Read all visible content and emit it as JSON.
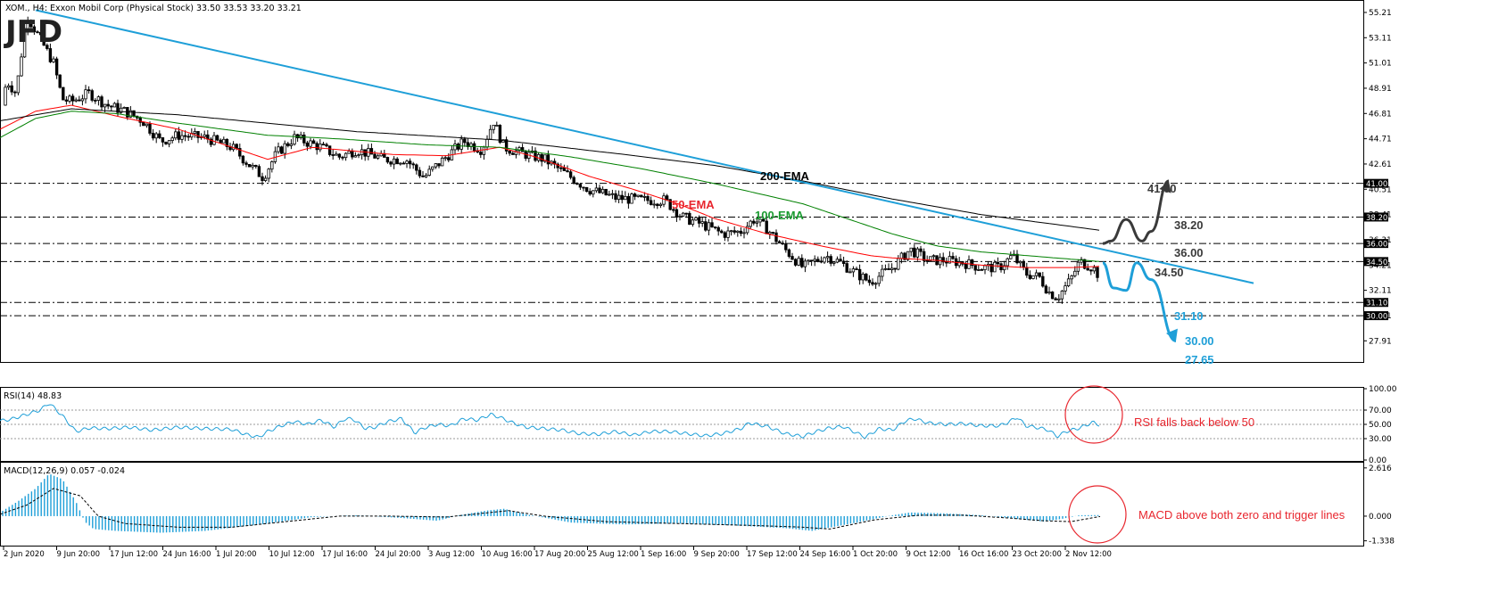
{
  "header": {
    "symbol_info": "XOM., H4:  Exxon Mobil Corp (Physical Stock)  33.50 33.53 33.20 33.21",
    "logo": "JFD"
  },
  "colors": {
    "candle_up": "#ffffff",
    "candle_down": "#000000",
    "ema50": "#ff0000",
    "ema100": "#008000",
    "ema200": "#000000",
    "trendline": "#1e9fd8",
    "indicator_line": "#1e9fd8",
    "bullish_arrow": "#3a3a3a",
    "bearish_arrow": "#1e9fd8",
    "annotation": "#e8262e"
  },
  "chart_data": [
    {
      "type": "candlestick",
      "panel": "price",
      "ylim": [
        26.3,
        55.8
      ],
      "yticks": [
        "55.21",
        "53.11",
        "51.01",
        "48.91",
        "46.81",
        "44.71",
        "42.61",
        "40.51",
        "38.41",
        "36.31",
        "34.21",
        "32.11",
        "30.01",
        "27.91"
      ],
      "x_labels": [
        "2 Jun 2020",
        "9 Jun 20:00",
        "17 Jun 12:00",
        "24 Jun 16:00",
        "1 Jul 20:00",
        "10 Jul 12:00",
        "17 Jul 16:00",
        "24 Jul 20:00",
        "3 Aug 12:00",
        "10 Aug 16:00",
        "17 Aug 20:00",
        "25 Aug 12:00",
        "1 Sep 16:00",
        "9 Sep 20:00",
        "17 Sep 12:00",
        "24 Sep 16:00",
        "1 Oct 20:00",
        "9 Oct 12:00",
        "16 Oct 16:00",
        "23 Oct 20:00",
        "2 Nov 12:00"
      ],
      "price_anchors": [
        [
          0,
          47.5
        ],
        [
          8,
          49.5
        ],
        [
          18,
          48.5
        ],
        [
          30,
          55.0
        ],
        [
          45,
          53.0
        ],
        [
          60,
          51.0
        ],
        [
          70,
          48.0
        ],
        [
          80,
          47.8
        ],
        [
          100,
          48.5
        ],
        [
          120,
          47.5
        ],
        [
          140,
          47.0
        ],
        [
          160,
          46.2
        ],
        [
          180,
          44.5
        ],
        [
          200,
          45.0
        ],
        [
          230,
          44.8
        ],
        [
          260,
          44.0
        ],
        [
          280,
          42.5
        ],
        [
          295,
          41.5
        ],
        [
          310,
          43.5
        ],
        [
          330,
          44.8
        ],
        [
          360,
          44.0
        ],
        [
          380,
          43.2
        ],
        [
          400,
          43.8
        ],
        [
          430,
          43.0
        ],
        [
          455,
          43.0
        ],
        [
          475,
          41.5
        ],
        [
          500,
          43.2
        ],
        [
          520,
          44.5
        ],
        [
          540,
          43.8
        ],
        [
          553,
          46.2
        ],
        [
          565,
          44.0
        ],
        [
          585,
          43.5
        ],
        [
          610,
          43.0
        ],
        [
          630,
          42.0
        ],
        [
          660,
          40.5
        ],
        [
          690,
          39.8
        ],
        [
          720,
          39.6
        ],
        [
          745,
          39.6
        ],
        [
          765,
          38.2
        ],
        [
          790,
          37.5
        ],
        [
          810,
          36.8
        ],
        [
          830,
          37.0
        ],
        [
          845,
          38.0
        ],
        [
          860,
          37.2
        ],
        [
          880,
          35.5
        ],
        [
          900,
          34.0
        ],
        [
          925,
          35.0
        ],
        [
          940,
          34.5
        ],
        [
          960,
          33.5
        ],
        [
          975,
          32.8
        ],
        [
          1000,
          34.0
        ],
        [
          1020,
          35.5
        ],
        [
          1040,
          34.6
        ],
        [
          1060,
          34.6
        ],
        [
          1080,
          34.4
        ],
        [
          1100,
          34.0
        ],
        [
          1120,
          34.0
        ],
        [
          1135,
          35.0
        ],
        [
          1150,
          33.5
        ],
        [
          1165,
          33.2
        ],
        [
          1175,
          32.0
        ],
        [
          1185,
          31.5
        ],
        [
          1200,
          33.0
        ],
        [
          1210,
          34.5
        ],
        [
          1225,
          34.0
        ],
        [
          1233,
          33.2
        ]
      ],
      "series": [
        {
          "name": "50-EMA",
          "x": [
            0,
            40,
            80,
            130,
            200,
            300,
            350,
            440,
            500,
            560,
            600,
            660,
            710,
            760,
            800,
            860,
            920,
            975,
            1000,
            1050,
            1100,
            1150,
            1200,
            1233
          ],
          "y": [
            45.5,
            47.0,
            47.5,
            46.6,
            45.5,
            43.0,
            44.0,
            43.4,
            43.3,
            44.0,
            43.2,
            41.6,
            40.5,
            39.3,
            38.1,
            36.8,
            35.8,
            35.0,
            34.8,
            34.6,
            34.2,
            34.0,
            34.0,
            34.1
          ]
        },
        {
          "name": "100-EMA",
          "x": [
            0,
            40,
            80,
            130,
            200,
            300,
            380,
            480,
            560,
            640,
            720,
            800,
            900,
            1000,
            1050,
            1100,
            1150,
            1200,
            1233
          ],
          "y": [
            44.8,
            46.4,
            47.0,
            46.8,
            46.0,
            45.0,
            44.7,
            44.2,
            44.0,
            43.2,
            42.2,
            41.0,
            39.3,
            36.8,
            35.8,
            35.3,
            35.0,
            34.7,
            34.5
          ]
        },
        {
          "name": "200-EMA",
          "x": [
            0,
            80,
            200,
            400,
            560,
            700,
            800,
            900,
            1000,
            1100,
            1233
          ],
          "y": [
            46.2,
            47.2,
            46.7,
            45.3,
            44.6,
            43.4,
            42.5,
            41.2,
            39.7,
            38.4,
            37.1
          ]
        }
      ],
      "trendline": {
        "from": [
          40,
          55.4
        ],
        "to": [
          1405,
          32.7
        ]
      },
      "horizontal_levels": [
        {
          "value": 41.0,
          "label": "41.00"
        },
        {
          "value": 38.2,
          "label": "38.20"
        },
        {
          "value": 36.0,
          "label": "36.00"
        },
        {
          "value": 34.5,
          "label": "34.50"
        },
        {
          "value": 31.1,
          "label": "31.10"
        },
        {
          "value": 30.0,
          "label": "30.00"
        }
      ],
      "right_axis_level_tags": [
        "41.00",
        "38.20",
        "36.00",
        "34.50",
        "31.10",
        "30.00"
      ],
      "ema_labels": [
        {
          "text": "200-EMA",
          "color": "#000000"
        },
        {
          "text": "50-EMA",
          "color": "#e8262e"
        },
        {
          "text": "100-EMA",
          "color": "#1a9b30"
        }
      ],
      "scenario_bullish": {
        "path_points": [
          [
            1236,
            36.0
          ],
          [
            1245,
            36.2
          ],
          [
            1262,
            38.0
          ],
          [
            1280,
            36.2
          ],
          [
            1290,
            37.0
          ],
          [
            1310,
            41.2
          ]
        ],
        "labels": [
          "41.00",
          "38.20",
          "36.00",
          "34.50"
        ]
      },
      "scenario_bearish": {
        "path_points": [
          [
            1236,
            34.4
          ],
          [
            1248,
            32.3
          ],
          [
            1262,
            32.1
          ],
          [
            1274,
            34.4
          ],
          [
            1290,
            33.0
          ],
          [
            1318,
            27.9
          ]
        ],
        "labels": [
          "31.10",
          "30.00",
          "27.65"
        ]
      }
    },
    {
      "type": "line",
      "panel": "rsi",
      "name": "RSI(14) 48.83",
      "ylim": [
        0,
        100
      ],
      "yticks": [
        "100.00",
        "70.00",
        "50.00",
        "30.00",
        "0.00"
      ],
      "levels": [
        70,
        50,
        30
      ],
      "x": [
        0,
        12,
        30,
        45,
        55,
        70,
        85,
        100,
        120,
        145,
        170,
        200,
        230,
        260,
        275,
        290,
        300,
        315,
        330,
        345,
        360,
        375,
        385,
        395,
        410,
        420,
        435,
        450,
        465,
        475,
        490,
        505,
        520,
        535,
        550,
        560,
        575,
        590,
        610,
        630,
        650,
        670,
        690,
        710,
        730,
        750,
        770,
        790,
        810,
        830,
        840,
        860,
        880,
        900,
        915,
        930,
        945,
        960,
        970,
        985,
        1000,
        1015,
        1025,
        1040,
        1060,
        1080,
        1100,
        1120,
        1130,
        1140,
        1150,
        1165,
        1175,
        1185,
        1195,
        1210,
        1225,
        1233
      ],
      "values": [
        55,
        57,
        64,
        70,
        80,
        62,
        40,
        45,
        44,
        46,
        42,
        46,
        44,
        43,
        36,
        32,
        40,
        48,
        54,
        50,
        56,
        46,
        57,
        58,
        44,
        46,
        54,
        58,
        38,
        45,
        50,
        48,
        58,
        56,
        64,
        60,
        52,
        46,
        44,
        42,
        37,
        36,
        40,
        35,
        40,
        40,
        37,
        34,
        37,
        44,
        52,
        47,
        37,
        33,
        40,
        45,
        47,
        38,
        32,
        44,
        42,
        55,
        58,
        52,
        50,
        51,
        48,
        48,
        53,
        60,
        48,
        45,
        42,
        33,
        40,
        45,
        53,
        48.83
      ]
    },
    {
      "type": "bar+line",
      "panel": "macd",
      "name": "MACD(12,26,9) 0.057 -0.024",
      "ylim": [
        -1.55,
        2.85
      ],
      "yticks": [
        "2.616",
        "0.000",
        "-1.338"
      ],
      "histogram_x": [
        0,
        20,
        40,
        55,
        70,
        85,
        95,
        105,
        130,
        180,
        230,
        300,
        350,
        400,
        450,
        490,
        520,
        545,
        565,
        590,
        640,
        700,
        760,
        820,
        880,
        910,
        960,
        1000,
        1020,
        1060,
        1100,
        1140,
        1170,
        1190,
        1210,
        1233
      ],
      "histogram": [
        0.2,
        0.8,
        1.5,
        2.3,
        2.0,
        0.8,
        -0.3,
        -0.7,
        -0.8,
        -0.9,
        -0.8,
        -0.4,
        -0.05,
        0.05,
        -0.1,
        -0.25,
        0.1,
        0.3,
        0.4,
        0.1,
        -0.35,
        -0.45,
        -0.4,
        -0.5,
        -0.65,
        -0.8,
        -0.35,
        0.05,
        0.2,
        0.15,
        0.05,
        -0.15,
        -0.3,
        -0.15,
        0.05,
        0.06
      ],
      "signal_x": [
        0,
        30,
        60,
        90,
        110,
        140,
        200,
        260,
        320,
        380,
        440,
        500,
        540,
        570,
        610,
        680,
        760,
        840,
        900,
        930,
        980,
        1030,
        1080,
        1130,
        1170,
        1200,
        1233
      ],
      "signal": [
        0.1,
        0.6,
        1.5,
        1.1,
        0.0,
        -0.4,
        -0.6,
        -0.6,
        -0.3,
        0.0,
        0.0,
        -0.05,
        0.15,
        0.3,
        0.0,
        -0.3,
        -0.4,
        -0.5,
        -0.6,
        -0.7,
        -0.2,
        0.05,
        0.05,
        -0.1,
        -0.25,
        -0.3,
        -0.02
      ]
    }
  ],
  "annotations": {
    "rsi_note": "RSI falls back below 50",
    "macd_note": "MACD above both zero and trigger lines"
  }
}
